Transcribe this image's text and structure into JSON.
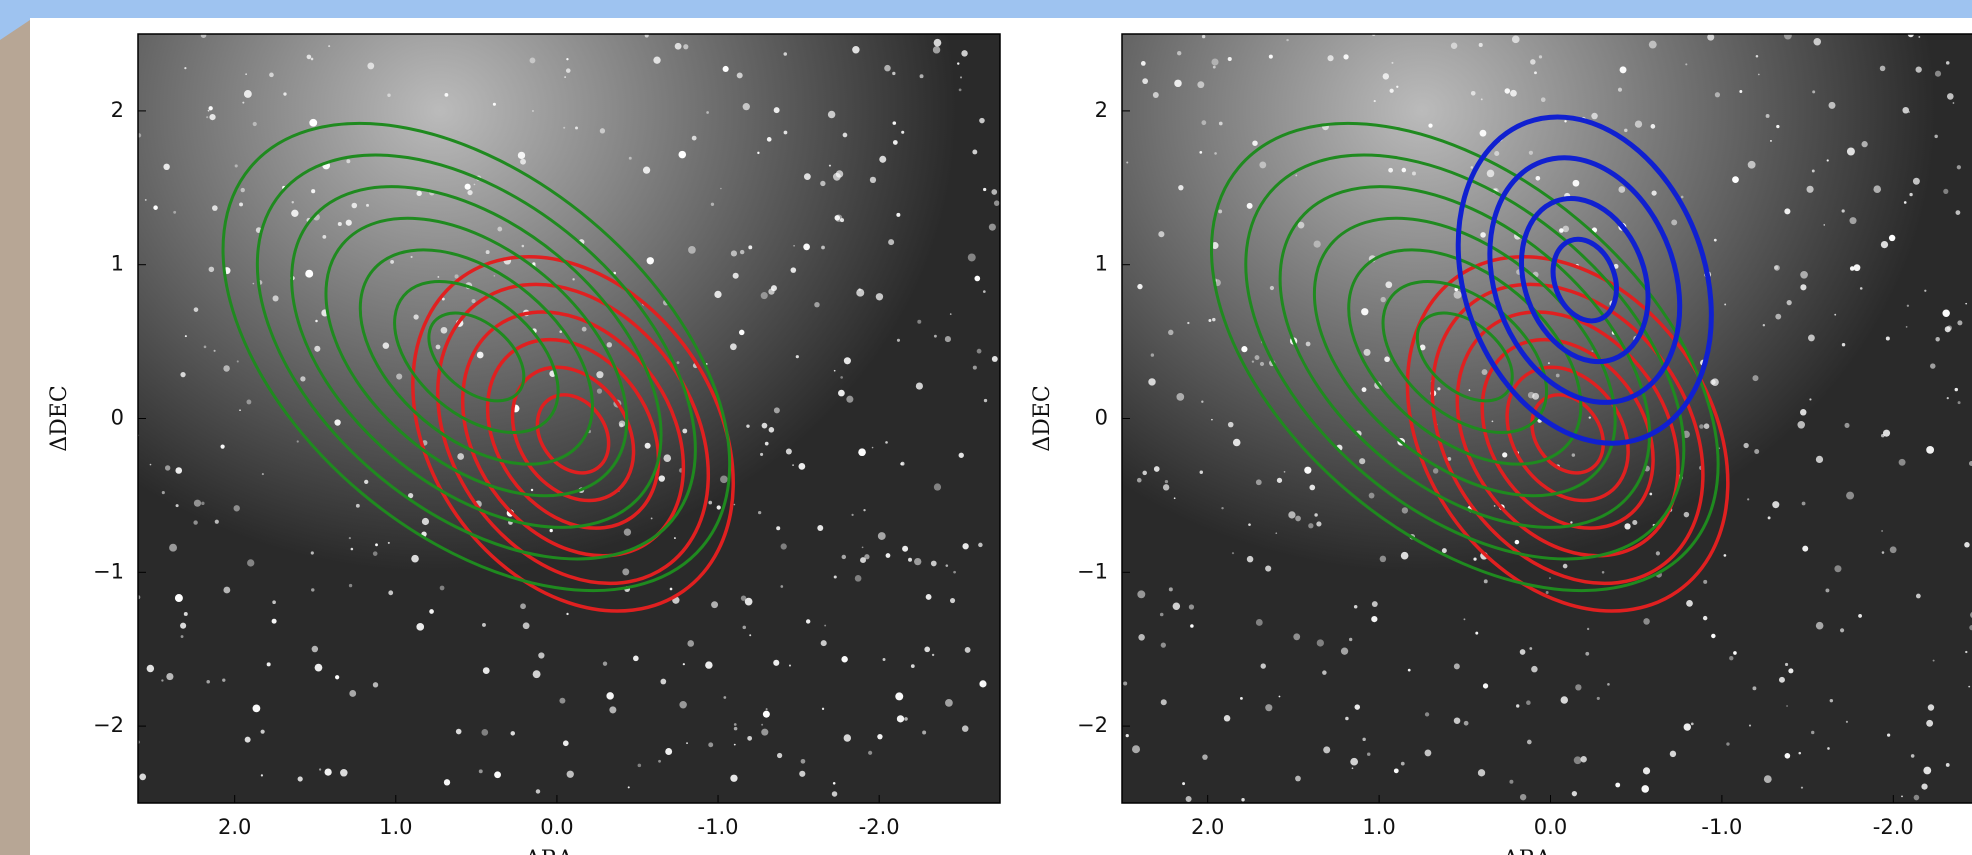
{
  "chart_data": [
    {
      "type": "contour",
      "xlabel": "ΔRA",
      "ylabel": "ΔDEC",
      "xlim": [
        2.6,
        -2.75
      ],
      "ylim": [
        -2.5,
        2.5
      ],
      "xticks": [
        {
          "value": 2,
          "label": "2.0"
        },
        {
          "value": 1,
          "label": "1.0"
        },
        {
          "value": 0,
          "label": "0.0"
        },
        {
          "value": -1,
          "label": "-1.0"
        },
        {
          "value": -2,
          "label": "-2.0"
        }
      ],
      "yticks": [
        {
          "value": -2,
          "label": "−2"
        },
        {
          "value": -1,
          "label": "−1"
        },
        0,
        1,
        2
      ]
    },
    {
      "type": "contour",
      "xlabel": "ΔRA",
      "ylabel": "ΔDEC",
      "xlim": [
        2.5,
        -2.5
      ],
      "ylim": [
        -2.5,
        2.5
      ],
      "xticks": [
        {
          "value": 2,
          "label": "2.0"
        },
        {
          "value": 1,
          "label": "1.0"
        },
        {
          "value": 0,
          "label": "0.0"
        },
        {
          "value": -1,
          "label": "-1.0"
        },
        {
          "value": -2,
          "label": "-2.0"
        }
      ],
      "yticks": [
        {
          "value": -2,
          "label": "−2"
        },
        {
          "value": -1,
          "label": "−1"
        },
        0,
        1,
        2
      ]
    }
  ]
}
